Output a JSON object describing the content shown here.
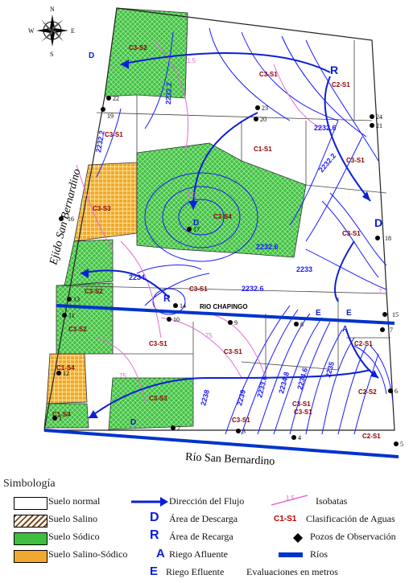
{
  "compass": {
    "n": "N",
    "s": "S",
    "e": "E",
    "w": "W"
  },
  "side_labels": {
    "left": "Ejido San Bernardino",
    "bottom": "Río San Bernardino",
    "river_inner": "RIO CHAPINGO"
  },
  "classification_codes": [
    "C3-S2",
    "C3-S1",
    "C2-S1",
    "C1-S1",
    "C3-S1",
    "C3-S1",
    "C3-S3",
    "C3-S4",
    "C3-S1",
    "C3-S2",
    "C3-S1",
    "C3-S2",
    "C3-S1",
    "C1-S4",
    "C3-S1",
    "C1-S4",
    "C3-S3",
    "C3-S1",
    "C3-S1",
    "C2-S1",
    "C2-S2",
    "C3-S1",
    "C2-S1"
  ],
  "isobath_values": [
    "2232.2",
    "2232.2",
    "2232.6",
    "2232.2",
    "2232.6",
    "2233",
    "2234",
    "2238",
    "2239",
    "2233.6",
    "2234.8",
    "2234.6",
    "2235",
    "2232.6"
  ],
  "isoline_pink_values": [
    "1.5",
    "1.5",
    "75",
    "75",
    "7"
  ],
  "well_ids": [
    "1",
    "2",
    "3",
    "4",
    "5",
    "6",
    "7",
    "8",
    "9",
    "10",
    "11",
    "12",
    "13",
    "14",
    "15",
    "16",
    "17",
    "18",
    "19",
    "20",
    "21",
    "22",
    "23",
    "24"
  ],
  "zone_letters": {
    "R": "R",
    "D": "D",
    "A": "A",
    "E": "E"
  },
  "legend": {
    "title": "Simbología",
    "normal": "Suelo normal",
    "salino": "Suelo Salino",
    "sodico": "Suelo Sódico",
    "salino_sodico": "Suelo Salino-Sódico",
    "flujo": "Dirección del Flujo",
    "descarga": "Área de Descarga",
    "recarga": "Área de Recarga",
    "afluente": "Riego Afluente",
    "efluente": "Riego Efluente",
    "isobatas": "Isobatas",
    "clasificacion_code": "C1-S1",
    "clasificacion": "Clasificación de Aguas",
    "pozos": "Pozos de Observación",
    "rios": "Ríos",
    "evaluaciones": "Evaluaciones en metros"
  },
  "colors": {
    "sodico": "#2fb52f",
    "salino_sodico": "#f2b53a",
    "iso_blue": "#1a1aff",
    "isobata_pink": "#e36bd6",
    "river": "#0033cc",
    "code": "#8b0000"
  }
}
